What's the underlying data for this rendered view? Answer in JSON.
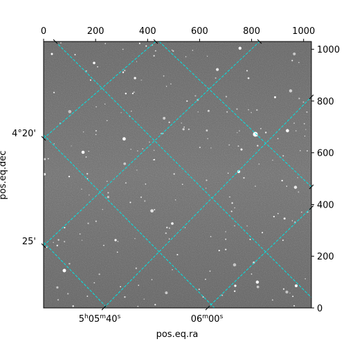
{
  "image": {
    "kind": "astronomical-sky-image",
    "x_pixel_ticks": [
      "0",
      "200",
      "400",
      "600",
      "800",
      "1000"
    ],
    "y_pixel_ticks": [
      "0",
      "200",
      "400",
      "600",
      "800",
      "1000"
    ],
    "ra_ticks": [
      {
        "h": "5",
        "m": "05",
        "s": "40"
      },
      {
        "h": "",
        "m": "06",
        "s": "00"
      }
    ],
    "dec_ticks": [
      "4°20'",
      "25'"
    ],
    "xlabel": "pos.eq.ra",
    "ylabel": "pos.eq.dec",
    "grid_color": "#00e5e5",
    "background_gray": "#6e6e6e"
  }
}
